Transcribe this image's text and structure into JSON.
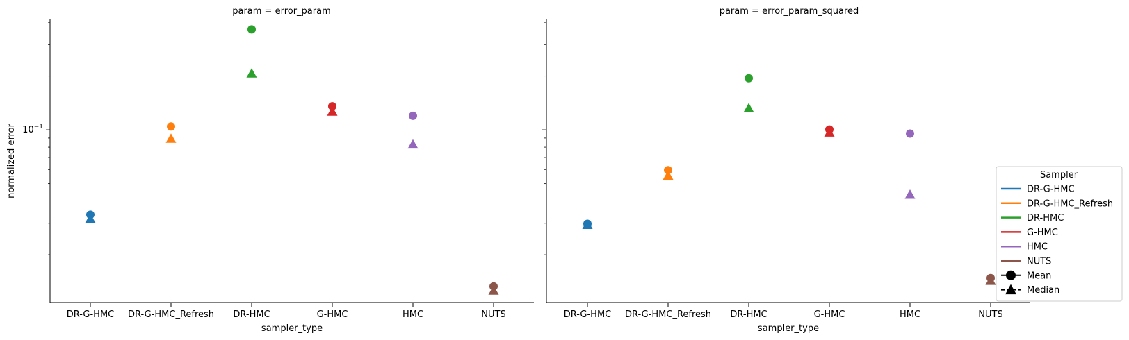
{
  "chart_data": [
    {
      "type": "scatter",
      "title": "param = error_param",
      "xlabel": "sampler_type",
      "ylabel": "normalized error",
      "yscale": "log",
      "ylim": [
        0.0108,
        0.415
      ],
      "yticks": [
        {
          "value": 0.1,
          "base": "10",
          "exp": "−1"
        }
      ],
      "categories": [
        "DR-G-HMC",
        "DR-G-HMC_Refresh",
        "DR-HMC",
        "G-HMC",
        "HMC",
        "NUTS"
      ],
      "series": [
        {
          "name": "Mean",
          "marker": "circle",
          "values": [
            0.0335,
            0.1045,
            0.365,
            0.1355,
            0.1198,
            0.0133
          ]
        },
        {
          "name": "Median",
          "marker": "triangle",
          "values": [
            0.0318,
            0.0893,
            0.207,
            0.1266,
            0.0829,
            0.0126
          ]
        }
      ],
      "grid": false
    },
    {
      "type": "scatter",
      "title": "param = error_param_squared",
      "xlabel": "sampler_type",
      "ylabel": "",
      "yscale": "log",
      "ylim": [
        0.0108,
        0.415
      ],
      "categories": [
        "DR-G-HMC",
        "DR-G-HMC_Refresh",
        "DR-HMC",
        "G-HMC",
        "HMC",
        "NUTS"
      ],
      "series": [
        {
          "name": "Mean",
          "marker": "circle",
          "values": [
            0.0298,
            0.0595,
            0.1945,
            0.1005,
            0.0953,
            0.0148
          ]
        },
        {
          "name": "Median",
          "marker": "triangle",
          "values": [
            0.0294,
            0.0555,
            0.1322,
            0.0967,
            0.0434,
            0.0143
          ]
        }
      ],
      "grid": false
    }
  ],
  "colors": {
    "DR-G-HMC": "#1f77b4",
    "DR-G-HMC_Refresh": "#ff7f0e",
    "DR-HMC": "#2ca02c",
    "G-HMC": "#d62728",
    "HMC": "#9467bd",
    "NUTS": "#8c564b"
  },
  "legend": {
    "title": "Sampler",
    "position": "right",
    "items": [
      {
        "label": "DR-G-HMC",
        "kind": "line",
        "color": "#1f77b4"
      },
      {
        "label": "DR-G-HMC_Refresh",
        "kind": "line",
        "color": "#ff7f0e"
      },
      {
        "label": "DR-HMC",
        "kind": "line",
        "color": "#2ca02c"
      },
      {
        "label": "G-HMC",
        "kind": "line",
        "color": "#d62728"
      },
      {
        "label": "HMC",
        "kind": "line",
        "color": "#9467bd"
      },
      {
        "label": "NUTS",
        "kind": "line",
        "color": "#8c564b"
      },
      {
        "label": "Mean",
        "kind": "marker-circle",
        "color": "#000000"
      },
      {
        "label": "Median",
        "kind": "marker-triangle",
        "color": "#000000"
      }
    ]
  }
}
